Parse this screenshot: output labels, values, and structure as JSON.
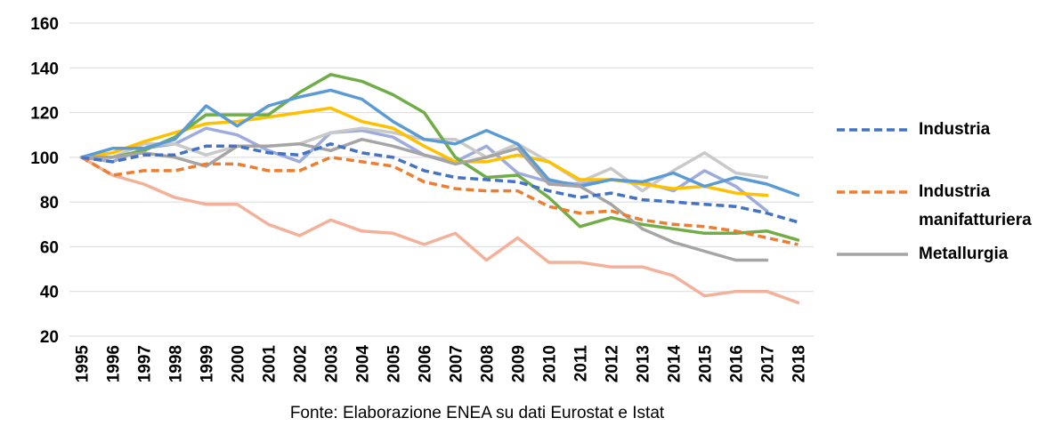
{
  "chart_data": {
    "type": "line",
    "categories": [
      "1995",
      "1996",
      "1997",
      "1998",
      "1999",
      "2000",
      "2001",
      "2002",
      "2003",
      "2004",
      "2005",
      "2006",
      "2007",
      "2008",
      "2009",
      "2010",
      "2011",
      "2012",
      "2013",
      "2014",
      "2015",
      "2016",
      "2017",
      "2018"
    ],
    "ylim": [
      20,
      160
    ],
    "yticks": [
      20,
      40,
      60,
      80,
      100,
      120,
      140,
      160
    ],
    "grid": true,
    "legend": "right",
    "source": "Fonte: Elaborazione ENEA su dati Eurostat e Istat",
    "series": [
      {
        "color": "#f4b19a",
        "values": [
          100,
          92,
          88,
          82,
          79,
          79,
          70,
          65,
          72,
          67,
          66,
          61,
          66,
          54,
          64,
          53,
          53,
          51,
          51,
          47,
          38,
          40,
          40,
          35
        ]
      },
      {
        "color": "#9dabdd",
        "values": [
          100,
          98,
          104,
          106,
          113,
          110,
          103,
          98,
          111,
          112,
          109,
          101,
          98,
          105,
          93,
          89,
          88,
          90,
          89,
          85,
          94,
          87,
          76,
          null
        ]
      },
      {
        "color": "#c9c9c9",
        "values": [
          100,
          100,
          106,
          106,
          101,
          105,
          105,
          106,
          111,
          113,
          111,
          108,
          108,
          100,
          106,
          98,
          89,
          95,
          85,
          94,
          102,
          93,
          91,
          null
        ]
      },
      {
        "color": "#ffc000",
        "values": [
          100,
          102,
          107,
          111,
          115,
          116,
          118,
          120,
          122,
          116,
          113,
          105,
          98,
          98,
          101,
          98,
          90,
          90,
          88,
          86,
          87,
          84,
          83,
          null
        ]
      },
      {
        "color": "#70ad47",
        "values": [
          100,
          100,
          103,
          109,
          119,
          119,
          119,
          129,
          137,
          134,
          128,
          120,
          100,
          91,
          92,
          82,
          69,
          73,
          70,
          68,
          66,
          66,
          67,
          63
        ]
      },
      {
        "color": "#5b9bd5",
        "values": [
          100,
          104,
          104,
          108,
          123,
          114,
          123,
          127,
          130,
          126,
          116,
          108,
          106,
          112,
          106,
          90,
          87,
          90,
          89,
          93,
          87,
          91,
          88,
          83
        ]
      },
      {
        "name": "Metallurgia",
        "color": "#a5a5a5",
        "values": [
          100,
          100,
          102,
          100,
          96,
          105,
          105,
          106,
          103,
          108,
          105,
          101,
          97,
          100,
          104,
          88,
          87,
          79,
          68,
          62,
          58,
          54,
          54,
          null
        ]
      },
      {
        "name": "Industria manifatturiera",
        "color": "#ed7d31",
        "dashed": true,
        "values": [
          100,
          92,
          94,
          94,
          97,
          97,
          94,
          94,
          100,
          98,
          96,
          89,
          86,
          85,
          85,
          78,
          75,
          76,
          72,
          70,
          69,
          67,
          64,
          61
        ]
      },
      {
        "name": "Industria",
        "color": "#4472c4",
        "dashed": true,
        "values": [
          100,
          98,
          101,
          101,
          105,
          105,
          102,
          101,
          106,
          102,
          100,
          94,
          91,
          90,
          89,
          85,
          82,
          84,
          81,
          80,
          79,
          78,
          75,
          71
        ]
      }
    ]
  }
}
